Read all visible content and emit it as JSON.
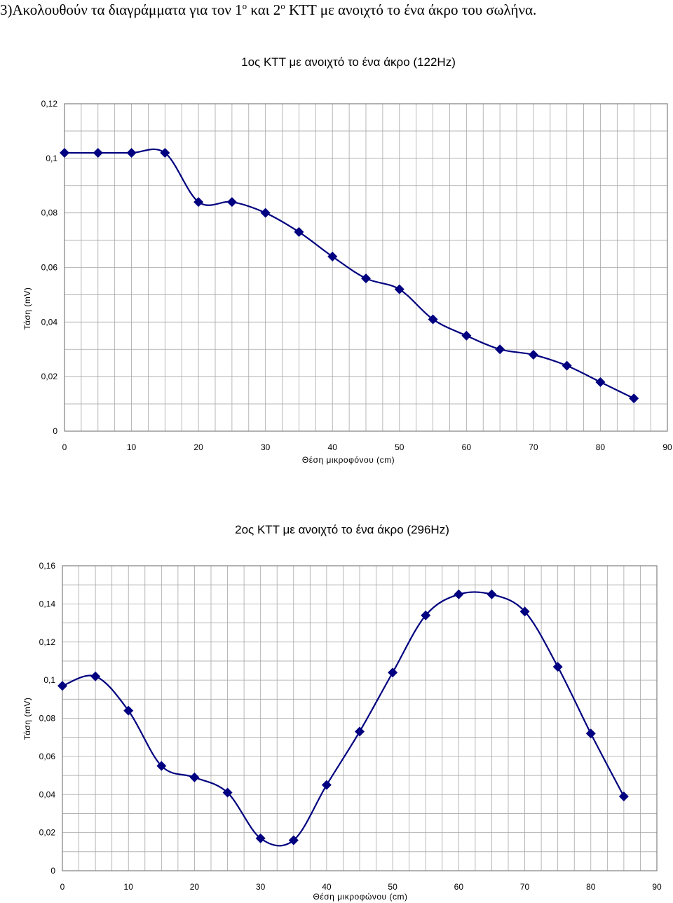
{
  "heading": {
    "part1": "3)Ακολουθούν τα διαγράμματα για τον 1",
    "sup1": "ο",
    "part2": " και 2",
    "sup2": "ο",
    "part3": " ΚΤΤ με ανοιχτό το ένα άκρο του σωλήνα."
  },
  "colors": {
    "series": "#000080",
    "grid": "#a6a6a6",
    "frame": "#808080"
  },
  "chart_data": [
    {
      "type": "scatter",
      "title": "1ος ΚΤΤ με ανοιχτό το ένα άκρο (122Hz)",
      "xlabel": "Θέση μικροφόνου (cm)",
      "ylabel": "Τάση (mV)",
      "xlim": [
        0,
        90
      ],
      "ylim": [
        0,
        0.12
      ],
      "x_ticks": [
        "0",
        "10",
        "20",
        "30",
        "40",
        "50",
        "60",
        "70",
        "80",
        "90"
      ],
      "y_ticks": [
        "0",
        "0,02",
        "0,04",
        "0,06",
        "0,08",
        "0,1",
        "0,12"
      ],
      "grid": true,
      "line": "smooth",
      "marker": "diamond",
      "x": [
        0,
        5,
        10,
        15,
        20,
        25,
        30,
        35,
        40,
        45,
        50,
        55,
        60,
        65,
        70,
        75,
        80,
        85
      ],
      "y": [
        0.102,
        0.102,
        0.102,
        0.102,
        0.084,
        0.084,
        0.08,
        0.073,
        0.064,
        0.056,
        0.052,
        0.041,
        0.035,
        0.03,
        0.028,
        0.024,
        0.018,
        0.012
      ]
    },
    {
      "type": "scatter",
      "title": "2ος ΚΤΤ με ανοιχτό το ένα άκρο (296Hz)",
      "xlabel": "Θέση μικροφώνου (cm)",
      "ylabel": "Τάση (mV)",
      "xlim": [
        0,
        90
      ],
      "ylim": [
        0,
        0.16
      ],
      "x_ticks": [
        "0",
        "10",
        "20",
        "30",
        "40",
        "50",
        "60",
        "70",
        "80",
        "90"
      ],
      "y_ticks": [
        "0",
        "0,02",
        "0,04",
        "0,06",
        "0,08",
        "0,1",
        "0,12",
        "0,14",
        "0,16"
      ],
      "grid": true,
      "line": "smooth",
      "marker": "diamond",
      "x": [
        0,
        5,
        10,
        15,
        20,
        25,
        30,
        35,
        40,
        45,
        50,
        55,
        60,
        65,
        70,
        75,
        80,
        85
      ],
      "y": [
        0.097,
        0.102,
        0.084,
        0.055,
        0.049,
        0.041,
        0.017,
        0.016,
        0.045,
        0.073,
        0.104,
        0.134,
        0.145,
        0.145,
        0.136,
        0.107,
        0.072,
        0.039
      ]
    }
  ]
}
